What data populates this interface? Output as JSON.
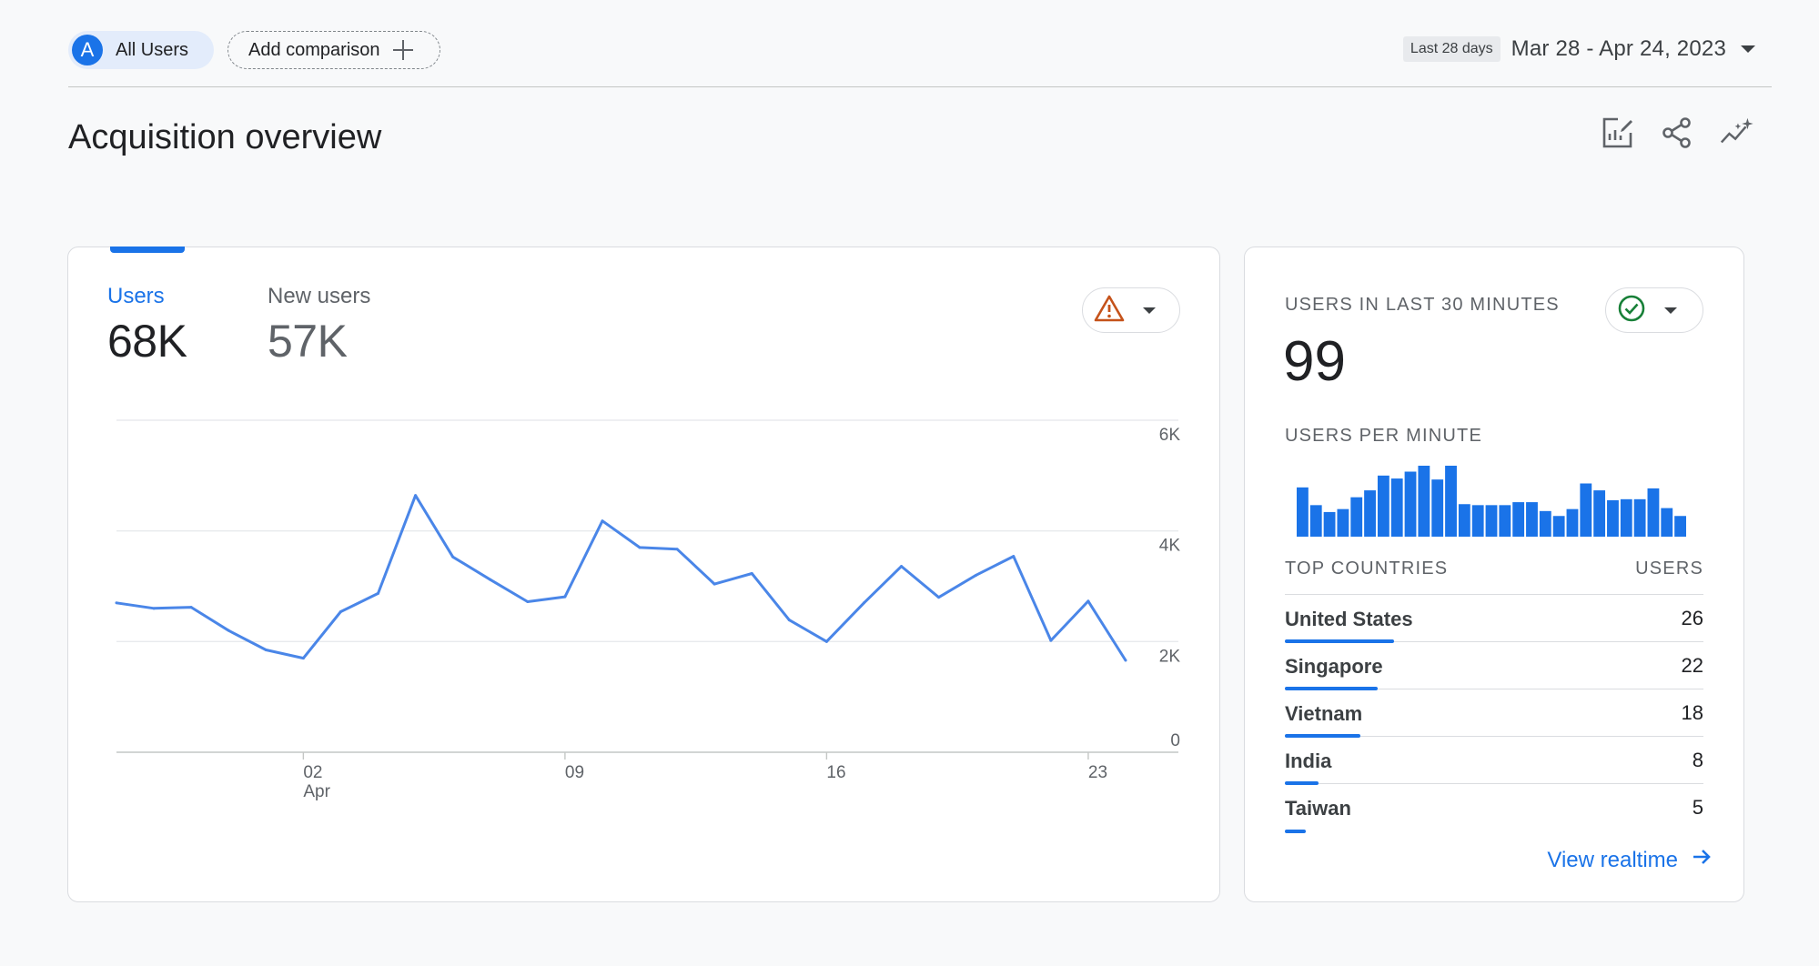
{
  "segment": {
    "avatar_letter": "A",
    "label": "All Users"
  },
  "comparison": {
    "label": "Add comparison",
    "icon": "plus-icon"
  },
  "date": {
    "range_pill": "Last 28 days",
    "range": "Mar 28 - Apr 24, 2023"
  },
  "page": {
    "title": "Acquisition overview"
  },
  "toolbar_icons": [
    "customize-report-icon",
    "share-icon",
    "insights-icon"
  ],
  "main_card": {
    "metrics": [
      {
        "label": "Users",
        "value": "68K"
      },
      {
        "label": "New users",
        "value": "57K"
      }
    ],
    "status_icon": "warning-icon"
  },
  "chart_data": {
    "type": "line",
    "series": [
      {
        "values": [
          2700,
          2600,
          2620,
          2200,
          1850,
          1700,
          2540,
          2870,
          4640,
          3530,
          3120,
          2720,
          2810,
          4180,
          3700,
          3670,
          3040,
          3230,
          2390,
          2000,
          2700,
          3360,
          2800,
          3200,
          3540,
          2020,
          2730,
          1660
        ]
      }
    ],
    "x": [
      "Mar 28",
      "Mar 29",
      "Mar 30",
      "Mar 31",
      "Apr 1",
      "Apr 2",
      "Apr 3",
      "Apr 4",
      "Apr 5",
      "Apr 6",
      "Apr 7",
      "Apr 8",
      "Apr 9",
      "Apr 10",
      "Apr 11",
      "Apr 12",
      "Apr 13",
      "Apr 14",
      "Apr 15",
      "Apr 16",
      "Apr 17",
      "Apr 18",
      "Apr 19",
      "Apr 20",
      "Apr 21",
      "Apr 22",
      "Apr 23",
      "Apr 24"
    ],
    "x_ticks": [
      {
        "index": 5,
        "label": "02",
        "sublabel": "Apr"
      },
      {
        "index": 12,
        "label": "09",
        "sublabel": ""
      },
      {
        "index": 19,
        "label": "16",
        "sublabel": ""
      },
      {
        "index": 26,
        "label": "23",
        "sublabel": ""
      }
    ],
    "y_ticks": [
      "0",
      "2K",
      "4K",
      "6K"
    ],
    "ylim": [
      0,
      6000
    ],
    "grid": true,
    "color": "#4a86e8"
  },
  "realtime": {
    "title": "USERS IN LAST 30 MINUTES",
    "count": "99",
    "per_minute_label": "USERS PER MINUTE",
    "per_minute": [
      5,
      3.2,
      2.5,
      2.8,
      4,
      4.7,
      6.2,
      5.9,
      6.6,
      7.2,
      5.8,
      7.2,
      3.3,
      3.2,
      3.2,
      3.2,
      3.5,
      3.5,
      2.6,
      2.1,
      2.8,
      5.4,
      4.7,
      3.7,
      3.8,
      3.8,
      4.9,
      2.9,
      2.1
    ],
    "status_icon": "check-circle-icon",
    "countries_header": {
      "left": "TOP COUNTRIES",
      "right": "USERS"
    },
    "countries": [
      {
        "name": "United States",
        "users": "26",
        "share": 1.0
      },
      {
        "name": "Singapore",
        "users": "22",
        "share": 0.846
      },
      {
        "name": "Vietnam",
        "users": "18",
        "share": 0.692
      },
      {
        "name": "India",
        "users": "8",
        "share": 0.308
      },
      {
        "name": "Taiwan",
        "users": "5",
        "share": 0.192
      }
    ],
    "view_link": "View realtime",
    "colors": {
      "accent": "#1a73e8"
    }
  }
}
